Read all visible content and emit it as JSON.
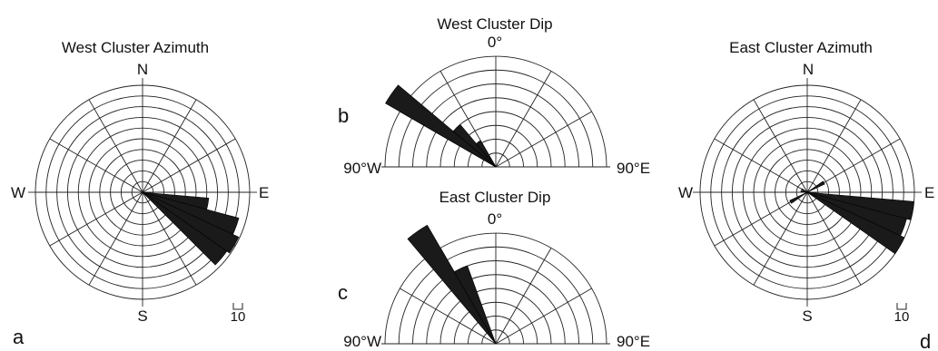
{
  "chart_data": [
    {
      "id": "west-az",
      "type": "rose",
      "panel": "a",
      "title": "West Cluster Azimuth",
      "labels": {
        "north": "N",
        "south": "S",
        "east": "E",
        "west": "W"
      },
      "scale_label": "10",
      "rings": 10,
      "ring_step": 10,
      "bin_width_deg": 10,
      "bins": [
        {
          "dir": 100,
          "value": 62
        },
        {
          "dir": 110,
          "value": 93
        },
        {
          "dir": 120,
          "value": 99
        },
        {
          "dir": 130,
          "value": 96
        }
      ]
    },
    {
      "id": "west-dip",
      "type": "semi-rose",
      "panel": "b",
      "title": "West Cluster Dip",
      "labels": {
        "top": "0°",
        "left": "90°W",
        "right": "90°E"
      },
      "rings": 8,
      "ring_step": 10,
      "bin_width_deg": 10,
      "bins": [
        {
          "dir": -55,
          "value": 92
        },
        {
          "dir": -45,
          "value": 40
        },
        {
          "dir": -35,
          "value": 22
        }
      ]
    },
    {
      "id": "east-dip",
      "type": "semi-rose",
      "panel": "c",
      "title": "East Cluster Dip",
      "labels": {
        "top": "0°",
        "left": "90°W",
        "right": "90°E"
      },
      "rings": 8,
      "ring_step": 10,
      "bin_width_deg": 10,
      "bins": [
        {
          "dir": -35,
          "value": 99
        },
        {
          "dir": -25,
          "value": 60
        }
      ]
    },
    {
      "id": "east-az",
      "type": "rose",
      "panel": "d",
      "title": "East Cluster Azimuth",
      "labels": {
        "north": "N",
        "south": "S",
        "east": "E",
        "west": "W"
      },
      "scale_label": "10",
      "rings": 10,
      "ring_step": 10,
      "bin_width_deg": 10,
      "bins": [
        {
          "dir": 60,
          "value": 18
        },
        {
          "dir": 100,
          "value": 100
        },
        {
          "dir": 110,
          "value": 96
        },
        {
          "dir": 120,
          "value": 100
        },
        {
          "dir": 240,
          "value": 18
        },
        {
          "dir": 280,
          "value": 6
        },
        {
          "dir": 300,
          "value": 6
        }
      ]
    }
  ]
}
